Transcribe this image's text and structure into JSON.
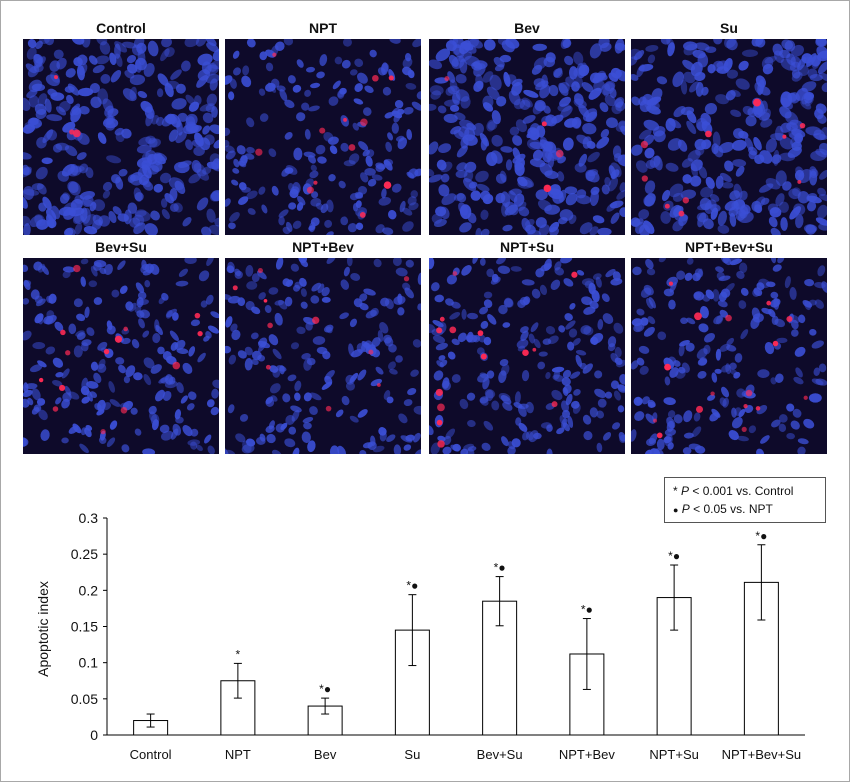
{
  "panels": [
    {
      "label": "Control",
      "red_cells": 3,
      "density": 1.0
    },
    {
      "label": "NPT",
      "red_cells": 12,
      "density": 0.55
    },
    {
      "label": "Bev",
      "red_cells": 4,
      "density": 1.0
    },
    {
      "label": "Su",
      "red_cells": 10,
      "density": 0.95
    },
    {
      "label": "Bev+Su",
      "red_cells": 14,
      "density": 0.6
    },
    {
      "label": "NPT+Bev",
      "red_cells": 10,
      "density": 0.55
    },
    {
      "label": "NPT+Su",
      "red_cells": 14,
      "density": 0.65
    },
    {
      "label": "NPT+Bev+Su",
      "red_cells": 16,
      "density": 0.6
    }
  ],
  "legend": {
    "row1": {
      "symbol": "*",
      "p": "P",
      "text": " < 0.001 vs. Control"
    },
    "row2": {
      "symbol": "●",
      "p": "P",
      "text": " < 0.05 vs. NPT"
    }
  },
  "chart_data": {
    "type": "bar",
    "categories": [
      "Control",
      "NPT",
      "Bev",
      "Su",
      "Bev+Su",
      "NPT+Bev",
      "NPT+Su",
      "NPT+Bev+Su"
    ],
    "values": [
      0.02,
      0.075,
      0.04,
      0.145,
      0.185,
      0.112,
      0.19,
      0.211
    ],
    "error": [
      0.009,
      0.024,
      0.011,
      0.049,
      0.034,
      0.049,
      0.045,
      0.052
    ],
    "markers": [
      "",
      "*",
      "*●",
      "*●",
      "*●",
      "*●",
      "*●",
      "*●"
    ],
    "ylabel": "Apoptotic index",
    "ylim": [
      0,
      0.3
    ],
    "yticks": [
      "0",
      "0.05",
      "0.1",
      "0.15",
      "0.2",
      "0.25",
      "0.3"
    ],
    "grid": false,
    "bar_fill": "#ffffff",
    "bar_stroke": "#000000"
  },
  "colors": {
    "nucleus_blue": "#3b4fd6",
    "apoptotic_red": "#ff2a55",
    "background": "#0e0a2a"
  }
}
